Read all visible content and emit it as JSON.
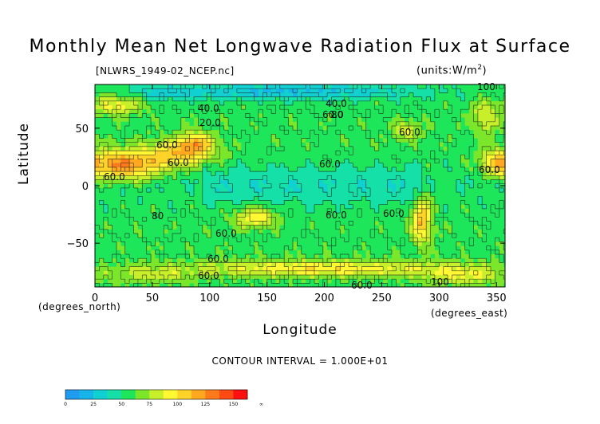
{
  "chart_data": {
    "type": "heatmap",
    "title": "Monthly Mean Net Longwave Radiation Flux at Surface",
    "subtitle_left": "[NLWRS_1949-02_NCEP.nc]",
    "subtitle_right": "(units:W/m^2)",
    "xlabel": "Longitude",
    "ylabel": "Latitude",
    "x_unit_label": "(degrees_east)",
    "y_unit_label": "(degrees_north)",
    "contour_interval": "CONTOUR INTERVAL = 1.000E+01",
    "xlim": [
      0,
      357.5
    ],
    "ylim": [
      -88,
      88
    ],
    "x_ticks": [
      0,
      50,
      100,
      150,
      200,
      250,
      300,
      350
    ],
    "y_ticks": [
      50,
      0,
      -50
    ],
    "y_tick_labels": [
      "50",
      "0",
      "−50"
    ],
    "contour_labels": [
      "40.0",
      "40.0",
      "60.0",
      "60.0",
      "60.0",
      "60.0",
      "80",
      "60.0",
      "60.0",
      "60.0",
      "60.0",
      "60.0",
      "60.0",
      "60.0",
      "60.0",
      "60.0",
      "100",
      "100",
      "80",
      "20.0"
    ],
    "colorbar": {
      "levels": [
        0,
        12.5,
        25,
        37.5,
        50,
        62.5,
        75,
        87.5,
        100,
        112.5,
        125,
        137.5,
        150,
        162.5
      ],
      "tick_labels": [
        "0",
        "25",
        "50",
        "75",
        "100",
        "125",
        "150",
        "∞"
      ],
      "colors": [
        "#1f9cf0",
        "#16b4e8",
        "#11d0d2",
        "#14e0a8",
        "#1ee65a",
        "#7be62a",
        "#c8f02a",
        "#fff832",
        "#ffd328",
        "#ffa820",
        "#ff7a1a",
        "#ff4a14",
        "#ff1010"
      ]
    }
  }
}
